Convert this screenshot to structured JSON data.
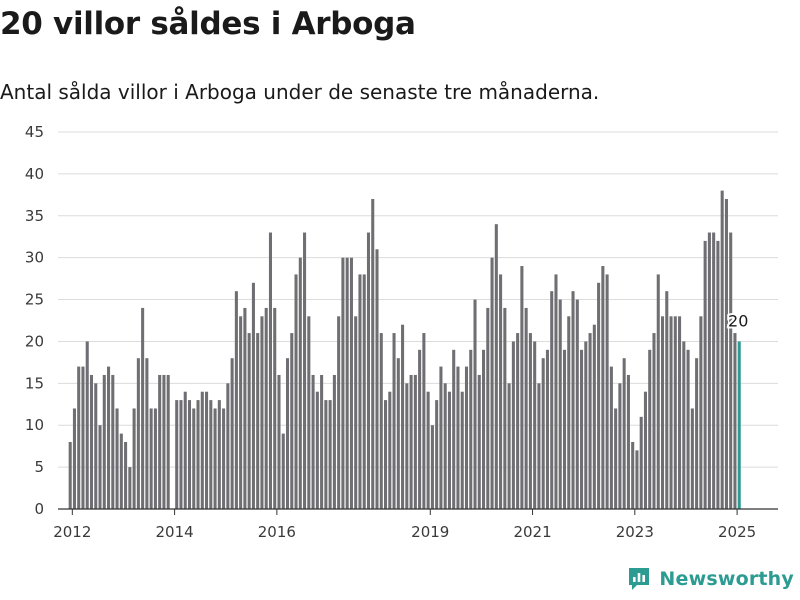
{
  "title": "20 villor såldes i Arboga",
  "subtitle": "Antal sålda villor i Arboga under de senaste tre månaderna.",
  "brand": {
    "name": "Newsworthy",
    "icon": "newsworthy-logo-icon",
    "color": "#2c9b92"
  },
  "chart_data": {
    "type": "bar",
    "ylim": [
      0,
      45
    ],
    "yticks": [
      0,
      5,
      10,
      15,
      20,
      25,
      30,
      35,
      40,
      45
    ],
    "xticks": [
      {
        "label": "2012",
        "x": 2012
      },
      {
        "label": "2014",
        "x": 2014
      },
      {
        "label": "2016",
        "x": 2016
      },
      {
        "label": "2019",
        "x": 2019
      },
      {
        "label": "2021",
        "x": 2021
      },
      {
        "label": "2023",
        "x": 2023
      },
      {
        "label": "2025",
        "x": 2025
      }
    ],
    "xlim": [
      2011.72,
      2025.8
    ],
    "grid": true,
    "bar_color": "#6f6e73",
    "highlight_color": "#2c9b92",
    "highlight_label": "20",
    "start": "2011-12",
    "values": [
      8,
      12,
      17,
      17,
      20,
      16,
      15,
      10,
      16,
      17,
      16,
      12,
      9,
      8,
      5,
      12,
      18,
      24,
      18,
      12,
      12,
      16,
      16,
      16,
      0,
      13,
      13,
      14,
      13,
      12,
      13,
      14,
      14,
      13,
      12,
      13,
      12,
      15,
      18,
      26,
      23,
      24,
      21,
      27,
      21,
      23,
      24,
      33,
      24,
      16,
      9,
      18,
      21,
      28,
      30,
      33,
      23,
      16,
      14,
      16,
      13,
      13,
      16,
      23,
      30,
      30,
      30,
      23,
      28,
      28,
      33,
      37,
      31,
      21,
      13,
      14,
      21,
      18,
      22,
      15,
      16,
      16,
      19,
      21,
      14,
      10,
      13,
      17,
      15,
      14,
      19,
      17,
      14,
      17,
      19,
      25,
      16,
      19,
      24,
      30,
      34,
      28,
      24,
      15,
      20,
      21,
      29,
      24,
      21,
      20,
      15,
      18,
      19,
      26,
      28,
      25,
      19,
      23,
      26,
      25,
      19,
      20,
      21,
      22,
      27,
      29,
      28,
      17,
      12,
      15,
      18,
      16,
      8,
      7,
      11,
      14,
      19,
      21,
      28,
      23,
      26,
      23,
      23,
      23,
      20,
      19,
      12,
      18,
      23,
      32,
      33,
      33,
      32,
      38,
      37,
      33,
      21,
      20
    ]
  }
}
